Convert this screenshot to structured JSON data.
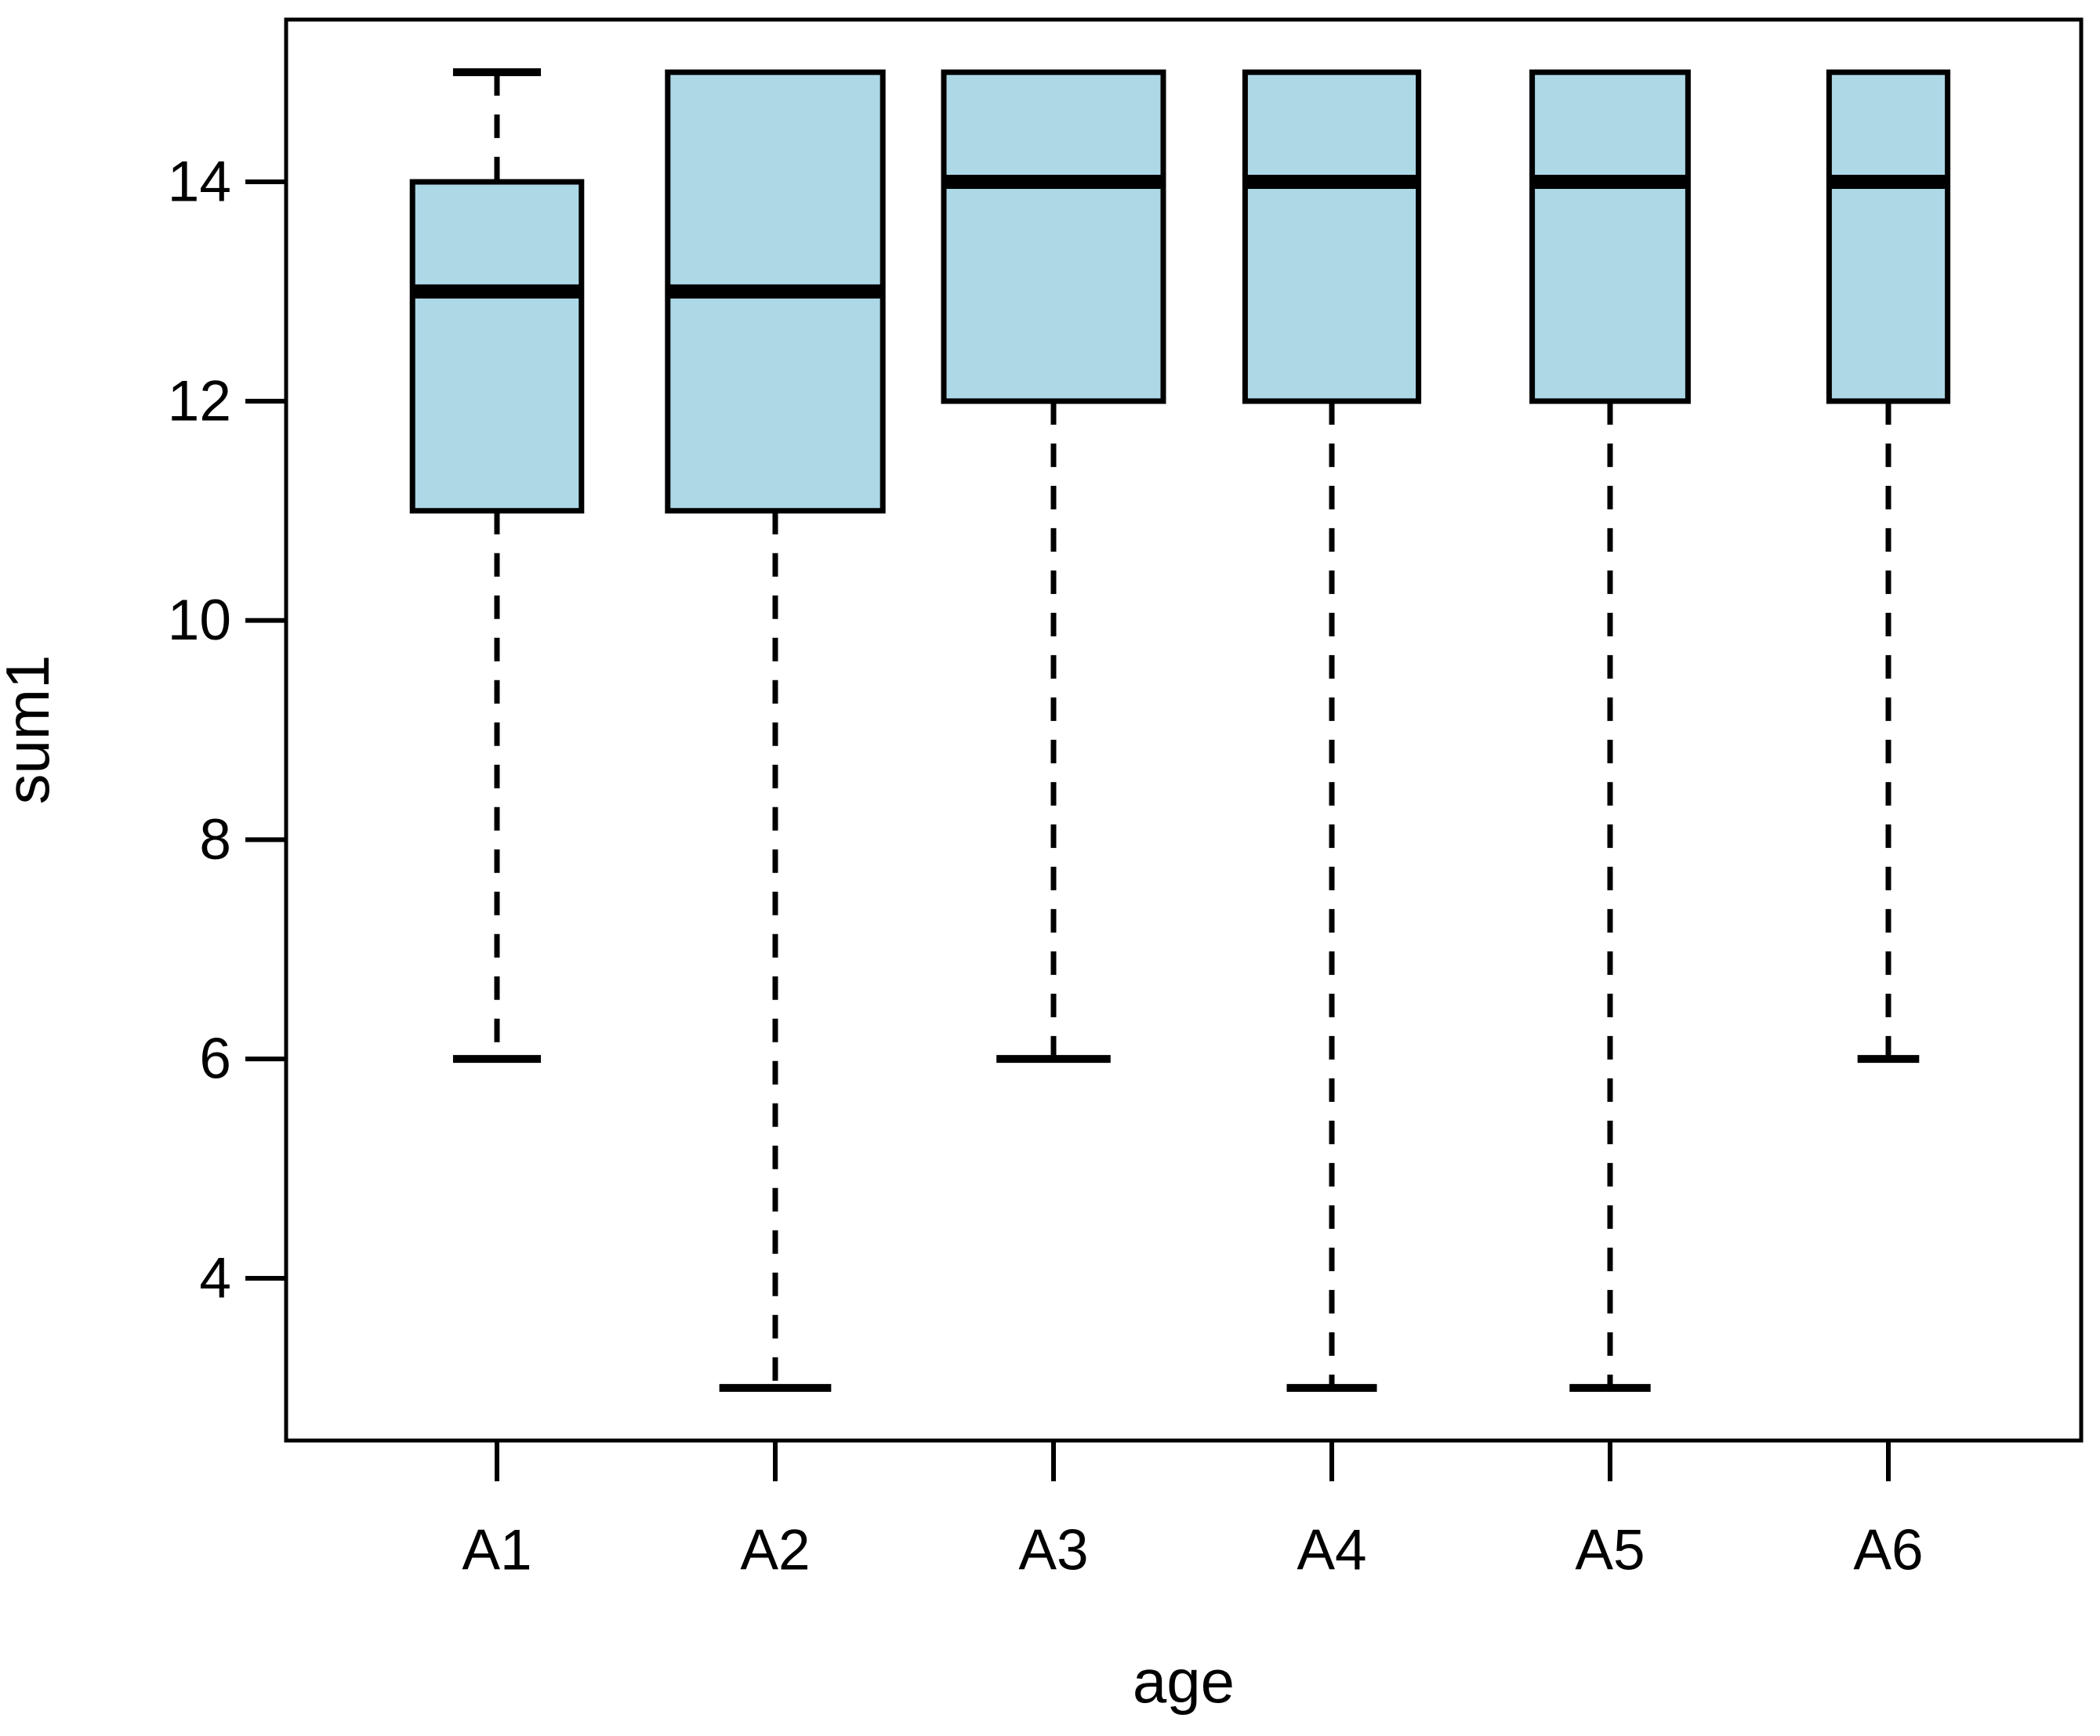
{
  "chart_data": {
    "type": "boxplot",
    "title": "",
    "xlabel": "age",
    "ylabel": "sum1",
    "categories": [
      "A1",
      "A2",
      "A3",
      "A4",
      "A5",
      "A6"
    ],
    "y_ticks": [
      4,
      6,
      8,
      10,
      12,
      14
    ],
    "ylim": [
      2.52,
      15.48
    ],
    "series": [
      {
        "name": "A1",
        "whisker_low": 6,
        "q1": 11,
        "median": 13,
        "q3": 14,
        "whisker_high": 15,
        "rel_width": 0.77
      },
      {
        "name": "A2",
        "whisker_low": 3,
        "q1": 11,
        "median": 13,
        "q3": 15,
        "whisker_high": 15,
        "rel_width": 0.98
      },
      {
        "name": "A3",
        "whisker_low": 6,
        "q1": 12,
        "median": 14,
        "q3": 15,
        "whisker_high": 15,
        "rel_width": 1.0
      },
      {
        "name": "A4",
        "whisker_low": 3,
        "q1": 12,
        "median": 14,
        "q3": 15,
        "whisker_high": 15,
        "rel_width": 0.79
      },
      {
        "name": "A5",
        "whisker_low": 3,
        "q1": 12,
        "median": 14,
        "q3": 15,
        "whisker_high": 15,
        "rel_width": 0.71
      },
      {
        "name": "A6",
        "whisker_low": 6,
        "q1": 12,
        "median": 14,
        "q3": 15,
        "whisker_high": 15,
        "rel_width": 0.54
      }
    ],
    "outliers": [],
    "legend": "none",
    "grid": false,
    "styles": {
      "box_fill": "#ADD8E6",
      "line_color": "#000000",
      "background": "#FFFFFF"
    }
  }
}
